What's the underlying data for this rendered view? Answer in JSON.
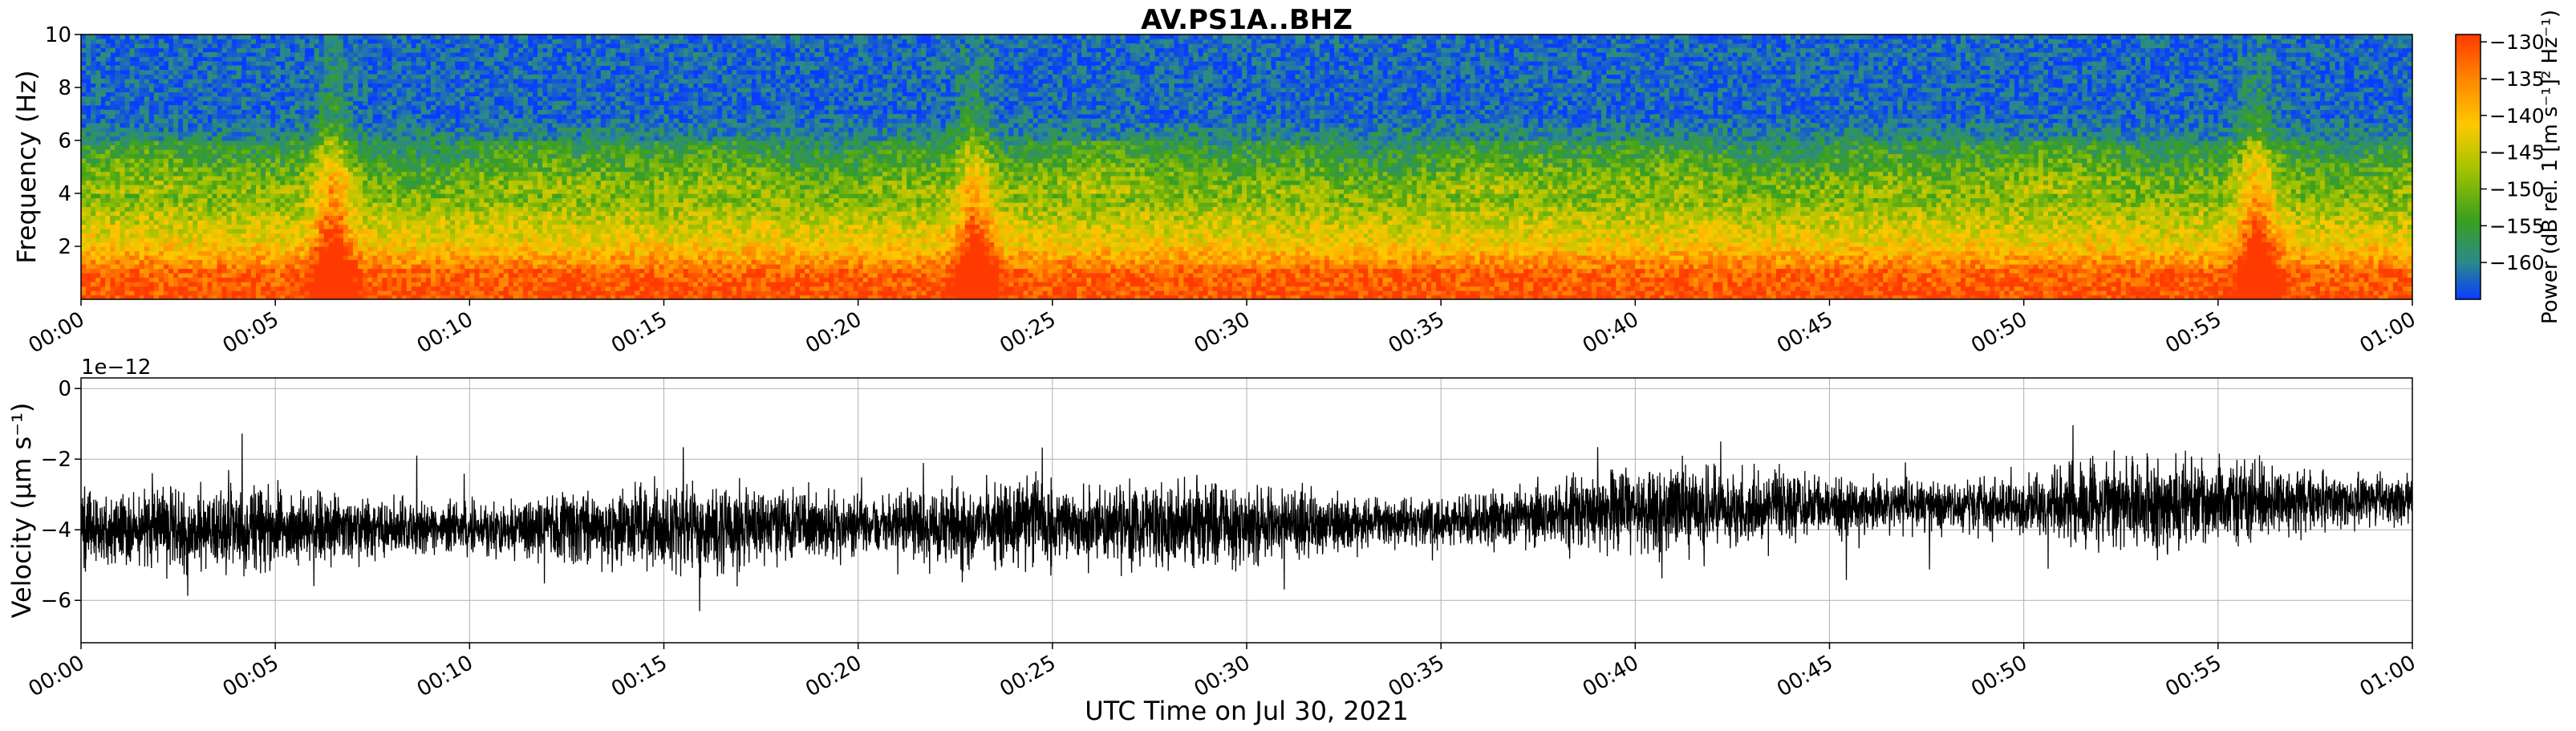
{
  "figure": {
    "title": "AV.PS1A..BHZ",
    "xlabel": "UTC Time on Jul 30, 2021"
  },
  "chart_data": [
    {
      "type": "heatmap",
      "title": "AV.PS1A..BHZ",
      "ylabel": "Frequency (Hz)",
      "ylim": [
        0,
        10
      ],
      "yticks": [
        2,
        4,
        6,
        8,
        10
      ],
      "xticks": [
        "00:00",
        "00:05",
        "00:10",
        "00:15",
        "00:20",
        "00:25",
        "00:30",
        "00:35",
        "00:40",
        "00:45",
        "00:50",
        "00:55",
        "01:00"
      ],
      "x_range_minutes": [
        0,
        60
      ],
      "colorbar": {
        "label": "Power (dB rel. 1 [m s⁻¹]² Hz⁻¹)",
        "range": [
          -165,
          -129
        ],
        "ticks": [
          -160,
          -155,
          -150,
          -145,
          -140,
          -135,
          -130
        ],
        "tick_labels": [
          "−160",
          "−155",
          "−150",
          "−145",
          "−140",
          "−135",
          "−130"
        ],
        "colors": [
          "#0a3cff",
          "#2a8a8a",
          "#3aa01e",
          "#a8c400",
          "#ffc800",
          "#ff8a00",
          "#ff3a00"
        ]
      },
      "bursts": [
        {
          "minute": 6.5,
          "top_freq_hz": 10
        },
        {
          "minute": 23.0,
          "top_freq_hz": 10
        },
        {
          "minute": 56.0,
          "top_freq_hz": 10
        }
      ]
    },
    {
      "type": "line",
      "ylabel": "Velocity (μm s⁻¹)",
      "xlabel": "UTC Time on Jul 30, 2021",
      "y_offset_label": "1e−12",
      "ylim": [
        -7.2,
        0.3
      ],
      "yticks": [
        0,
        -2,
        -4,
        -6
      ],
      "ytick_labels": [
        "0",
        "−2",
        "−4",
        "−6"
      ],
      "xticks": [
        "00:00",
        "00:05",
        "00:10",
        "00:15",
        "00:20",
        "00:25",
        "00:30",
        "00:35",
        "00:40",
        "00:45",
        "00:50",
        "00:55",
        "01:00"
      ],
      "x_range_minutes": [
        0,
        60
      ],
      "grid": true,
      "baseline_trend": [
        {
          "minute": 0,
          "value": -4.0
        },
        {
          "minute": 20,
          "value": -3.9
        },
        {
          "minute": 35,
          "value": -3.8
        },
        {
          "minute": 40,
          "value": -3.4
        },
        {
          "minute": 50,
          "value": -3.3
        },
        {
          "minute": 60,
          "value": -3.2
        }
      ],
      "amplitude_range": [
        -6.8,
        -0.3
      ]
    }
  ]
}
